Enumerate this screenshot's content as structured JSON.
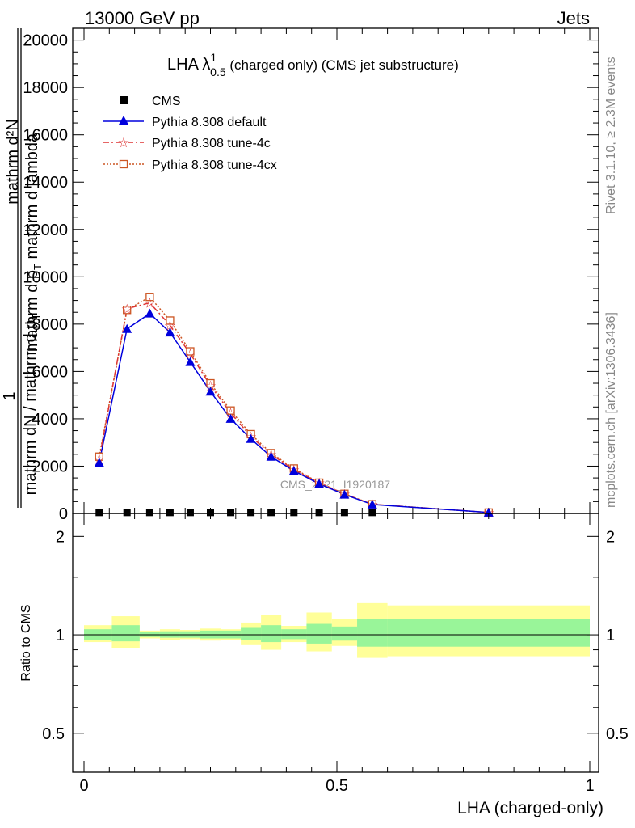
{
  "header": {
    "left": "13000 GeV pp",
    "right": "Jets"
  },
  "side_labels": {
    "rivet": "Rivet 3.1.10, ≥ 2.3M events",
    "mcplots": "mcplots.cern.ch [arXiv:1306.3436]"
  },
  "watermark": "CMS_2021_I1920187",
  "colors": {
    "data": "#000000",
    "default": "#0000dd",
    "tune4c": "#dd3333",
    "tune4cx": "#cc5522",
    "band_inner": "#99f599",
    "band_outer": "#ffff99"
  },
  "chart_data": [
    {
      "type": "line",
      "title_main": "LHA λ",
      "title_sup": "1",
      "title_sub": "0.5",
      "title_tail": " (charged only) (CMS jet substructure)",
      "ylabel_outer_num": "1",
      "ylabel_outer_den": "mathrm dN / mathrm d p",
      "ylabel_outer_den_sub": "T",
      "ylabel_inner_num": "mathrm d²N",
      "ylabel_inner_den": "mathrm d p",
      "ylabel_inner_den_sub": "T",
      "ylabel_inner_den_tail": " mathrm d lambda",
      "ylim": [
        0,
        20500
      ],
      "xlim": [
        0,
        1
      ],
      "y_ticks": [
        0,
        2000,
        4000,
        6000,
        8000,
        10000,
        12000,
        14000,
        16000,
        18000,
        20000
      ],
      "y_tick_labels": [
        "0",
        "2000",
        "4000",
        "6000",
        "8000",
        "10000",
        "12000",
        "14000",
        "16000",
        "18000",
        "20000"
      ],
      "legend": {
        "placement": "top-left",
        "entries": [
          "CMS",
          "Pythia 8.308 default",
          "Pythia 8.308 tune-4c",
          "Pythia 8.308 tune-4cx"
        ]
      },
      "series": [
        {
          "name": "CMS",
          "marker": "square",
          "x": [
            0.03,
            0.085,
            0.13,
            0.17,
            0.21,
            0.25,
            0.29,
            0.33,
            0.37,
            0.415,
            0.465,
            0.515,
            0.57
          ],
          "values": [
            40,
            40,
            40,
            40,
            40,
            40,
            40,
            40,
            40,
            40,
            40,
            40,
            40
          ]
        },
        {
          "name": "Pythia 8.308 default",
          "marker": "triangle",
          "x": [
            0.03,
            0.085,
            0.13,
            0.17,
            0.21,
            0.25,
            0.29,
            0.33,
            0.37,
            0.415,
            0.465,
            0.515,
            0.57,
            0.8
          ],
          "values": [
            2150,
            7800,
            8450,
            7650,
            6400,
            5150,
            4000,
            3150,
            2400,
            1800,
            1250,
            800,
            380,
            40
          ]
        },
        {
          "name": "Pythia 8.308 tune-4c",
          "marker": "star",
          "x": [
            0.03,
            0.085,
            0.13,
            0.17,
            0.21,
            0.25,
            0.29,
            0.33,
            0.37,
            0.415,
            0.465,
            0.515,
            0.57,
            0.8
          ],
          "values": [
            2300,
            8650,
            8900,
            7950,
            6750,
            5400,
            4250,
            3250,
            2500,
            1850,
            1300,
            820,
            390,
            40
          ]
        },
        {
          "name": "Pythia 8.308 tune-4cx",
          "marker": "open-square",
          "x": [
            0.03,
            0.085,
            0.13,
            0.17,
            0.21,
            0.25,
            0.29,
            0.33,
            0.37,
            0.415,
            0.465,
            0.515,
            0.57,
            0.8
          ],
          "values": [
            2400,
            8600,
            9150,
            8150,
            6850,
            5500,
            4350,
            3350,
            2550,
            1900,
            1300,
            830,
            390,
            40
          ]
        }
      ]
    },
    {
      "type": "area",
      "ylabel": "Ratio to CMS",
      "xlabel": "LHA (charged-only)",
      "ylim": [
        0.38,
        2.35
      ],
      "log_y": true,
      "xlim": [
        0,
        1
      ],
      "y_ticks": [
        0.5,
        1,
        2
      ],
      "y_tick_labels": [
        "0.5",
        "1",
        "2"
      ],
      "x_ticks": [
        0,
        0.5,
        1
      ],
      "x_tick_labels": [
        "0",
        "0.5",
        "1"
      ],
      "reference_line": 1,
      "bins": [
        {
          "lo": 0.0,
          "hi": 0.055,
          "inner": [
            0.965,
            1.04
          ],
          "outer": [
            0.95,
            1.07
          ]
        },
        {
          "lo": 0.055,
          "hi": 0.11,
          "inner": [
            0.955,
            1.07
          ],
          "outer": [
            0.91,
            1.14
          ]
        },
        {
          "lo": 0.11,
          "hi": 0.15,
          "inner": [
            0.985,
            1.02
          ],
          "outer": [
            0.975,
            1.03
          ]
        },
        {
          "lo": 0.15,
          "hi": 0.19,
          "inner": [
            0.98,
            1.025
          ],
          "outer": [
            0.965,
            1.04
          ]
        },
        {
          "lo": 0.19,
          "hi": 0.23,
          "inner": [
            0.98,
            1.025
          ],
          "outer": [
            0.97,
            1.035
          ]
        },
        {
          "lo": 0.23,
          "hi": 0.27,
          "inner": [
            0.975,
            1.03
          ],
          "outer": [
            0.96,
            1.045
          ]
        },
        {
          "lo": 0.27,
          "hi": 0.31,
          "inner": [
            0.975,
            1.03
          ],
          "outer": [
            0.965,
            1.04
          ]
        },
        {
          "lo": 0.31,
          "hi": 0.35,
          "inner": [
            0.965,
            1.05
          ],
          "outer": [
            0.93,
            1.09
          ]
        },
        {
          "lo": 0.35,
          "hi": 0.39,
          "inner": [
            0.95,
            1.07
          ],
          "outer": [
            0.9,
            1.15
          ]
        },
        {
          "lo": 0.39,
          "hi": 0.44,
          "inner": [
            0.97,
            1.04
          ],
          "outer": [
            0.95,
            1.065
          ]
        },
        {
          "lo": 0.44,
          "hi": 0.49,
          "inner": [
            0.94,
            1.08
          ],
          "outer": [
            0.89,
            1.17
          ]
        },
        {
          "lo": 0.49,
          "hi": 0.54,
          "inner": [
            0.96,
            1.06
          ],
          "outer": [
            0.925,
            1.12
          ]
        },
        {
          "lo": 0.54,
          "hi": 0.6,
          "inner": [
            0.92,
            1.12
          ],
          "outer": [
            0.85,
            1.25
          ]
        },
        {
          "lo": 0.6,
          "hi": 1.0,
          "inner": [
            0.92,
            1.12
          ],
          "outer": [
            0.86,
            1.23
          ]
        }
      ]
    }
  ]
}
